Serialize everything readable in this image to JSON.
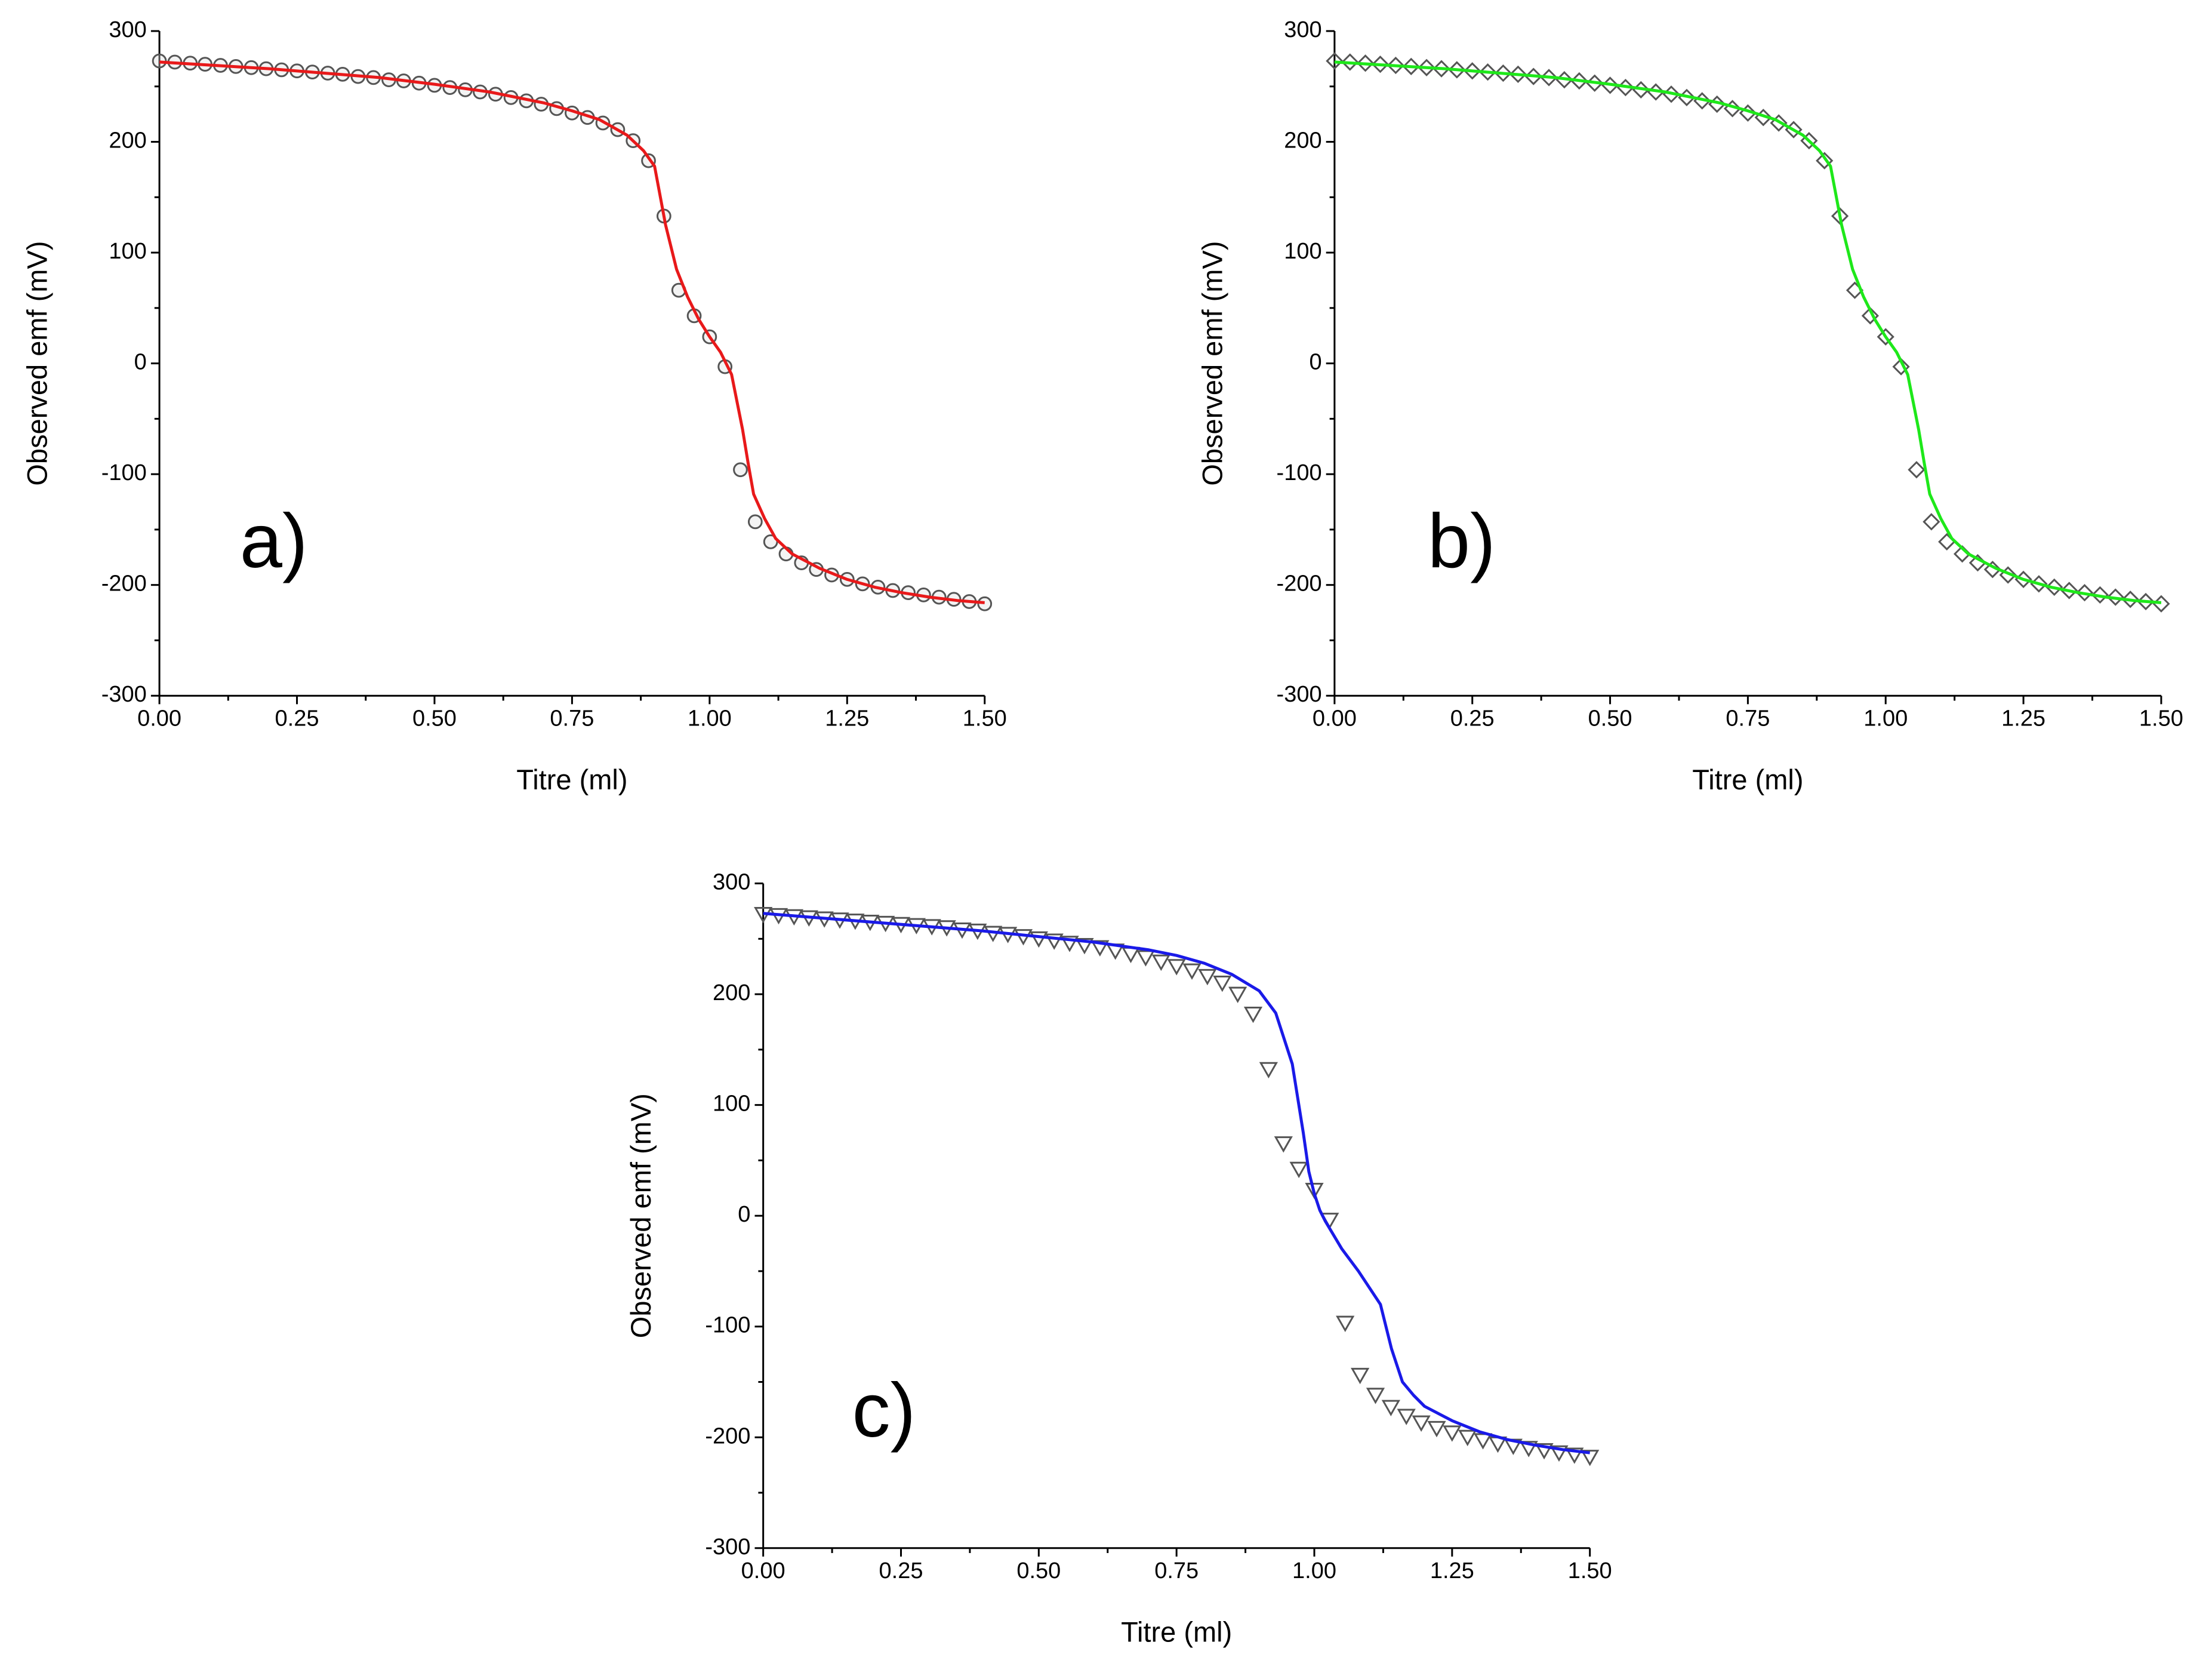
{
  "figure": {
    "description_labels": [
      "a)",
      "b)",
      "c)"
    ]
  },
  "chart_data": [
    {
      "type": "scatter",
      "panel_label": "a)",
      "xlabel": "Titre (ml)",
      "ylabel": "Observed emf (mV)",
      "xlim": [
        0.0,
        1.5
      ],
      "ylim": [
        -300,
        300
      ],
      "xticks": [
        "0.00",
        "0.25",
        "0.50",
        "0.75",
        "1.00",
        "1.25",
        "1.50"
      ],
      "yticks": [
        "-300",
        "-200",
        "-100",
        "0",
        "100",
        "200",
        "300"
      ],
      "marker": "circle",
      "fit_color": "#e8191a",
      "points": {
        "x": [
          0.0,
          0.028,
          0.056,
          0.083,
          0.111,
          0.139,
          0.167,
          0.194,
          0.222,
          0.25,
          0.278,
          0.306,
          0.333,
          0.361,
          0.389,
          0.417,
          0.444,
          0.472,
          0.5,
          0.528,
          0.556,
          0.583,
          0.611,
          0.639,
          0.667,
          0.694,
          0.722,
          0.75,
          0.778,
          0.806,
          0.833,
          0.861,
          0.889,
          0.917,
          0.944,
          0.972,
          1.0,
          1.028,
          1.056,
          1.083,
          1.111,
          1.139,
          1.167,
          1.194,
          1.222,
          1.25,
          1.278,
          1.306,
          1.333,
          1.361,
          1.389,
          1.417,
          1.444,
          1.472,
          1.5
        ],
        "y": [
          273,
          272,
          271,
          270,
          269,
          268,
          267,
          266,
          265,
          264,
          263,
          262,
          261,
          259,
          258,
          256,
          255,
          253,
          251,
          249,
          247,
          245,
          243,
          240,
          237,
          234,
          230,
          226,
          222,
          217,
          211,
          201,
          183,
          133,
          66,
          43,
          24,
          -3,
          -96,
          -143,
          -161,
          -172,
          -180,
          -186,
          -191,
          -195,
          -199,
          -202,
          -205,
          -207,
          -209,
          -211,
          -213,
          -215,
          -217
        ]
      },
      "fit": {
        "x": [
          0.0,
          0.1,
          0.2,
          0.3,
          0.4,
          0.5,
          0.6,
          0.7,
          0.75,
          0.8,
          0.85,
          0.88,
          0.9,
          0.92,
          0.94,
          0.96,
          0.98,
          1.0,
          1.02,
          1.04,
          1.06,
          1.07,
          1.08,
          1.1,
          1.12,
          1.15,
          1.2,
          1.25,
          1.3,
          1.35,
          1.4,
          1.45,
          1.5
        ],
        "y": [
          272,
          269,
          266,
          262,
          258,
          252,
          245,
          235,
          228,
          220,
          206,
          192,
          178,
          125,
          85,
          60,
          40,
          24,
          10,
          -10,
          -60,
          -90,
          -118,
          -140,
          -158,
          -172,
          -185,
          -195,
          -202,
          -207,
          -211,
          -214,
          -216
        ]
      }
    },
    {
      "type": "scatter",
      "panel_label": "b)",
      "xlabel": "Titre (ml)",
      "ylabel": "Observed emf (mV)",
      "xlim": [
        0.0,
        1.5
      ],
      "ylim": [
        -300,
        300
      ],
      "xticks": [
        "0.00",
        "0.25",
        "0.50",
        "0.75",
        "1.00",
        "1.25",
        "1.50"
      ],
      "yticks": [
        "-300",
        "-200",
        "-100",
        "0",
        "100",
        "200",
        "300"
      ],
      "marker": "diamond",
      "fit_color": "#1ee81a",
      "points": {
        "x": [
          0.0,
          0.028,
          0.056,
          0.083,
          0.111,
          0.139,
          0.167,
          0.194,
          0.222,
          0.25,
          0.278,
          0.306,
          0.333,
          0.361,
          0.389,
          0.417,
          0.444,
          0.472,
          0.5,
          0.528,
          0.556,
          0.583,
          0.611,
          0.639,
          0.667,
          0.694,
          0.722,
          0.75,
          0.778,
          0.806,
          0.833,
          0.861,
          0.889,
          0.917,
          0.944,
          0.972,
          1.0,
          1.028,
          1.056,
          1.083,
          1.111,
          1.139,
          1.167,
          1.194,
          1.222,
          1.25,
          1.278,
          1.306,
          1.333,
          1.361,
          1.389,
          1.417,
          1.444,
          1.472,
          1.5
        ],
        "y": [
          273,
          272,
          271,
          270,
          269,
          268,
          267,
          266,
          265,
          264,
          263,
          262,
          261,
          259,
          258,
          256,
          255,
          253,
          251,
          249,
          247,
          245,
          243,
          240,
          237,
          234,
          230,
          226,
          222,
          217,
          211,
          201,
          183,
          133,
          66,
          43,
          24,
          -3,
          -96,
          -143,
          -161,
          -172,
          -180,
          -186,
          -191,
          -195,
          -199,
          -202,
          -205,
          -207,
          -209,
          -211,
          -213,
          -215,
          -217
        ]
      },
      "fit": {
        "x": [
          0.0,
          0.1,
          0.2,
          0.3,
          0.4,
          0.5,
          0.6,
          0.7,
          0.75,
          0.8,
          0.85,
          0.88,
          0.9,
          0.92,
          0.94,
          0.96,
          0.98,
          1.0,
          1.02,
          1.04,
          1.06,
          1.07,
          1.08,
          1.1,
          1.12,
          1.15,
          1.2,
          1.25,
          1.3,
          1.35,
          1.4,
          1.45,
          1.5
        ],
        "y": [
          272,
          269,
          266,
          262,
          258,
          252,
          245,
          235,
          228,
          220,
          206,
          192,
          178,
          125,
          85,
          60,
          40,
          24,
          10,
          -10,
          -60,
          -90,
          -118,
          -140,
          -158,
          -172,
          -185,
          -195,
          -202,
          -207,
          -211,
          -214,
          -216
        ]
      }
    },
    {
      "type": "scatter",
      "panel_label": "c)",
      "xlabel": "Titre (ml)",
      "ylabel": "Observed emf (mV)",
      "xlim": [
        0.0,
        1.5
      ],
      "ylim": [
        -300,
        300
      ],
      "xticks": [
        "0.00",
        "0.25",
        "0.50",
        "0.75",
        "1.00",
        "1.25",
        "1.50"
      ],
      "yticks": [
        "-300",
        "-200",
        "-100",
        "0",
        "100",
        "200",
        "300"
      ],
      "marker": "triangle-down",
      "fit_color": "#1a1ae8",
      "points": {
        "x": [
          0.0,
          0.028,
          0.056,
          0.083,
          0.111,
          0.139,
          0.167,
          0.194,
          0.222,
          0.25,
          0.278,
          0.306,
          0.333,
          0.361,
          0.389,
          0.417,
          0.444,
          0.472,
          0.5,
          0.528,
          0.556,
          0.583,
          0.611,
          0.639,
          0.667,
          0.694,
          0.722,
          0.75,
          0.778,
          0.806,
          0.833,
          0.861,
          0.889,
          0.917,
          0.944,
          0.972,
          1.0,
          1.028,
          1.056,
          1.083,
          1.111,
          1.139,
          1.167,
          1.194,
          1.222,
          1.25,
          1.278,
          1.306,
          1.333,
          1.361,
          1.389,
          1.417,
          1.444,
          1.472,
          1.5
        ],
        "y": [
          273,
          272,
          271,
          270,
          269,
          268,
          267,
          266,
          265,
          264,
          263,
          262,
          261,
          259,
          258,
          256,
          255,
          253,
          251,
          249,
          247,
          245,
          243,
          240,
          237,
          234,
          230,
          226,
          222,
          217,
          211,
          201,
          183,
          133,
          66,
          43,
          24,
          -3,
          -96,
          -143,
          -161,
          -172,
          -180,
          -186,
          -191,
          -195,
          -199,
          -202,
          -205,
          -207,
          -209,
          -211,
          -213,
          -215,
          -217
        ]
      },
      "fit": {
        "x": [
          0.0,
          0.1,
          0.2,
          0.3,
          0.4,
          0.5,
          0.6,
          0.7,
          0.75,
          0.8,
          0.85,
          0.9,
          0.93,
          0.96,
          0.98,
          0.99,
          1.0,
          1.01,
          1.02,
          1.05,
          1.08,
          1.12,
          1.14,
          1.16,
          1.18,
          1.2,
          1.25,
          1.3,
          1.35,
          1.4,
          1.45,
          1.5
        ],
        "y": [
          273,
          269,
          265,
          261,
          257,
          252,
          247,
          240,
          235,
          228,
          218,
          203,
          183,
          137,
          75,
          40,
          20,
          5,
          -5,
          -30,
          -50,
          -80,
          -120,
          -150,
          -162,
          -172,
          -185,
          -195,
          -202,
          -207,
          -211,
          -214
        ]
      }
    }
  ]
}
